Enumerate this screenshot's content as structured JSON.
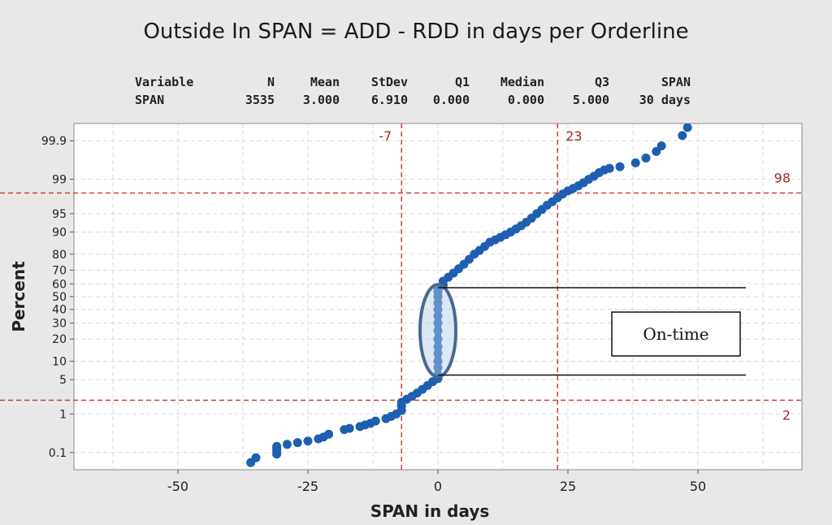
{
  "title": "Outside In SPAN = ADD - RDD in days per Orderline",
  "stats_table": {
    "headers": [
      "Variable",
      "N",
      "Mean",
      "StDev",
      "Q1",
      "Median",
      "Q3",
      "SPAN"
    ],
    "row": [
      "SPAN",
      "3535",
      "3.000",
      "6.910",
      "0.000",
      "0.000",
      "5.000",
      "30 days"
    ]
  },
  "chart_data": {
    "type": "scatter",
    "subtype": "normal-probability-plot",
    "xlabel": "SPAN in days",
    "ylabel": "Percent",
    "xlim": [
      -70,
      70
    ],
    "ylim_percent": [
      0.03,
      99.97
    ],
    "x_ticks": [
      -50,
      -25,
      0,
      25,
      50
    ],
    "y_ticks": [
      0.1,
      1,
      5,
      10,
      20,
      30,
      40,
      50,
      60,
      70,
      80,
      90,
      95,
      99,
      99.9
    ],
    "grid": true,
    "reference_lines": {
      "vertical": [
        {
          "x": -7,
          "label": "-7"
        },
        {
          "x": 23,
          "label": "23"
        }
      ],
      "horizontal": [
        {
          "y": 98,
          "label": "98"
        },
        {
          "y": 2,
          "label": "2"
        }
      ]
    },
    "annotation": {
      "text": "On-time",
      "ellipse_center": [
        0,
        25
      ],
      "bracket_y": [
        57,
        6
      ]
    },
    "points": [
      [
        -36,
        0.05
      ],
      [
        -35,
        0.07
      ],
      [
        -31,
        0.09
      ],
      [
        -31,
        0.11
      ],
      [
        -31,
        0.13
      ],
      [
        -31,
        0.15
      ],
      [
        -29,
        0.17
      ],
      [
        -27,
        0.19
      ],
      [
        -25,
        0.21
      ],
      [
        -23,
        0.24
      ],
      [
        -22,
        0.27
      ],
      [
        -21,
        0.32
      ],
      [
        -18,
        0.42
      ],
      [
        -17,
        0.45
      ],
      [
        -15,
        0.5
      ],
      [
        -14,
        0.55
      ],
      [
        -13,
        0.6
      ],
      [
        -12,
        0.68
      ],
      [
        -10,
        0.78
      ],
      [
        -9,
        0.88
      ],
      [
        -8,
        1.0
      ],
      [
        -7,
        1.2
      ],
      [
        -7,
        1.5
      ],
      [
        -7,
        1.8
      ],
      [
        -6,
        2.1
      ],
      [
        -5,
        2.4
      ],
      [
        -4,
        2.8
      ],
      [
        -3,
        3.3
      ],
      [
        -2,
        3.9
      ],
      [
        -1,
        4.6
      ],
      [
        0,
        5.2
      ],
      [
        0,
        6
      ],
      [
        0,
        8
      ],
      [
        0,
        10
      ],
      [
        0,
        13
      ],
      [
        0,
        16
      ],
      [
        0,
        20
      ],
      [
        0,
        25
      ],
      [
        0,
        30
      ],
      [
        0,
        35
      ],
      [
        0,
        40
      ],
      [
        0,
        45
      ],
      [
        0,
        50
      ],
      [
        0,
        54
      ],
      [
        0,
        56
      ],
      [
        1,
        59
      ],
      [
        1,
        62
      ],
      [
        2,
        65
      ],
      [
        3,
        68
      ],
      [
        4,
        71
      ],
      [
        5,
        74
      ],
      [
        6,
        77
      ],
      [
        7,
        80
      ],
      [
        8,
        82
      ],
      [
        9,
        84
      ],
      [
        10,
        86
      ],
      [
        11,
        87
      ],
      [
        12,
        88
      ],
      [
        13,
        89
      ],
      [
        14,
        90
      ],
      [
        15,
        91
      ],
      [
        16,
        92
      ],
      [
        17,
        93
      ],
      [
        18,
        94
      ],
      [
        19,
        95
      ],
      [
        20,
        95.8
      ],
      [
        21,
        96.5
      ],
      [
        22,
        97
      ],
      [
        23,
        97.5
      ],
      [
        24,
        97.9
      ],
      [
        25,
        98.2
      ],
      [
        26,
        98.4
      ],
      [
        27,
        98.6
      ],
      [
        28,
        98.8
      ],
      [
        29,
        99.0
      ],
      [
        30,
        99.15
      ],
      [
        31,
        99.3
      ],
      [
        32,
        99.4
      ],
      [
        33,
        99.45
      ],
      [
        35,
        99.5
      ],
      [
        38,
        99.6
      ],
      [
        40,
        99.7
      ],
      [
        42,
        99.8
      ],
      [
        43,
        99.86
      ],
      [
        47,
        99.93
      ],
      [
        48,
        99.96
      ]
    ]
  }
}
